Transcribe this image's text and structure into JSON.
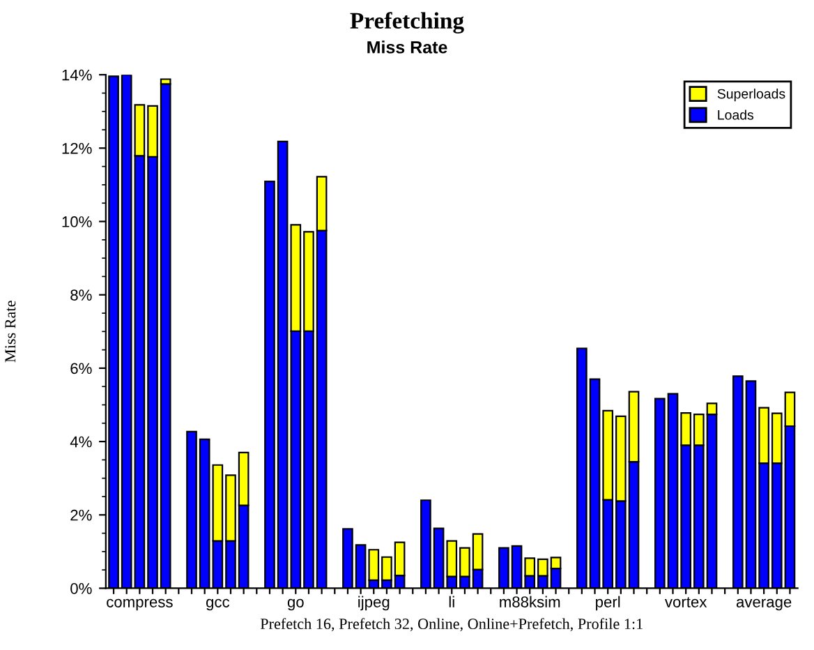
{
  "chart_data": {
    "type": "bar",
    "stacked": true,
    "title": "Prefetching",
    "subtitle": "Miss Rate",
    "xlabel": "Prefetch 16, Prefetch 32, Online, Online+Prefetch, Profile 1:1",
    "ylabel": "Miss Rate",
    "categories": [
      null,
      null,
      "compress",
      null,
      null,
      null,
      null,
      null,
      "gcc",
      null,
      null,
      null,
      null,
      null,
      "go",
      null,
      null,
      null,
      null,
      null,
      "ijpeg",
      null,
      null,
      null,
      null,
      null,
      "li",
      null,
      null,
      null,
      null,
      null,
      "m88ksim",
      null,
      null,
      null,
      null,
      null,
      "perl",
      null,
      null,
      null,
      null,
      null,
      "vortex",
      null,
      null,
      null,
      null,
      null,
      "average",
      null,
      null
    ],
    "series": [
      {
        "name": "Loads",
        "color": "#0000ff",
        "values": [
          13.96,
          14.0,
          11.79,
          11.76,
          13.75,
          null,
          4.27,
          4.06,
          1.29,
          1.29,
          2.26,
          null,
          11.09,
          12.18,
          7.01,
          7.01,
          9.75,
          null,
          1.62,
          1.18,
          0.22,
          0.22,
          0.35,
          null,
          2.4,
          1.63,
          0.32,
          0.32,
          0.51,
          null,
          1.1,
          1.15,
          0.34,
          0.34,
          0.54,
          null,
          6.54,
          5.7,
          2.41,
          2.38,
          3.45,
          null,
          5.17,
          5.3,
          3.9,
          3.9,
          4.74,
          null,
          5.78,
          5.65,
          3.41,
          3.41,
          4.42
        ]
      },
      {
        "name": "Superloads",
        "color": "#ffff00",
        "values": [
          null,
          null,
          1.39,
          1.39,
          0.13,
          null,
          null,
          null,
          2.07,
          1.79,
          1.44,
          null,
          null,
          null,
          2.9,
          2.71,
          1.47,
          null,
          null,
          null,
          0.83,
          0.63,
          0.9,
          null,
          null,
          null,
          0.97,
          0.78,
          0.97,
          null,
          null,
          null,
          0.48,
          0.45,
          0.3,
          null,
          null,
          null,
          2.43,
          2.31,
          1.91,
          null,
          null,
          null,
          0.88,
          0.84,
          0.3,
          null,
          null,
          null,
          1.51,
          1.36,
          0.92
        ]
      }
    ],
    "ylim": [
      0,
      14
    ],
    "yticks": [
      {
        "value": 0,
        "label": "0%"
      },
      {
        "value": 2,
        "label": "2%"
      },
      {
        "value": 4,
        "label": "4%"
      },
      {
        "value": 6,
        "label": "6%"
      },
      {
        "value": 8,
        "label": "8%"
      },
      {
        "value": 10,
        "label": "10%"
      },
      {
        "value": 12,
        "label": "12%"
      },
      {
        "value": 14,
        "label": "14%"
      }
    ],
    "legend": "top right",
    "grid": false
  }
}
